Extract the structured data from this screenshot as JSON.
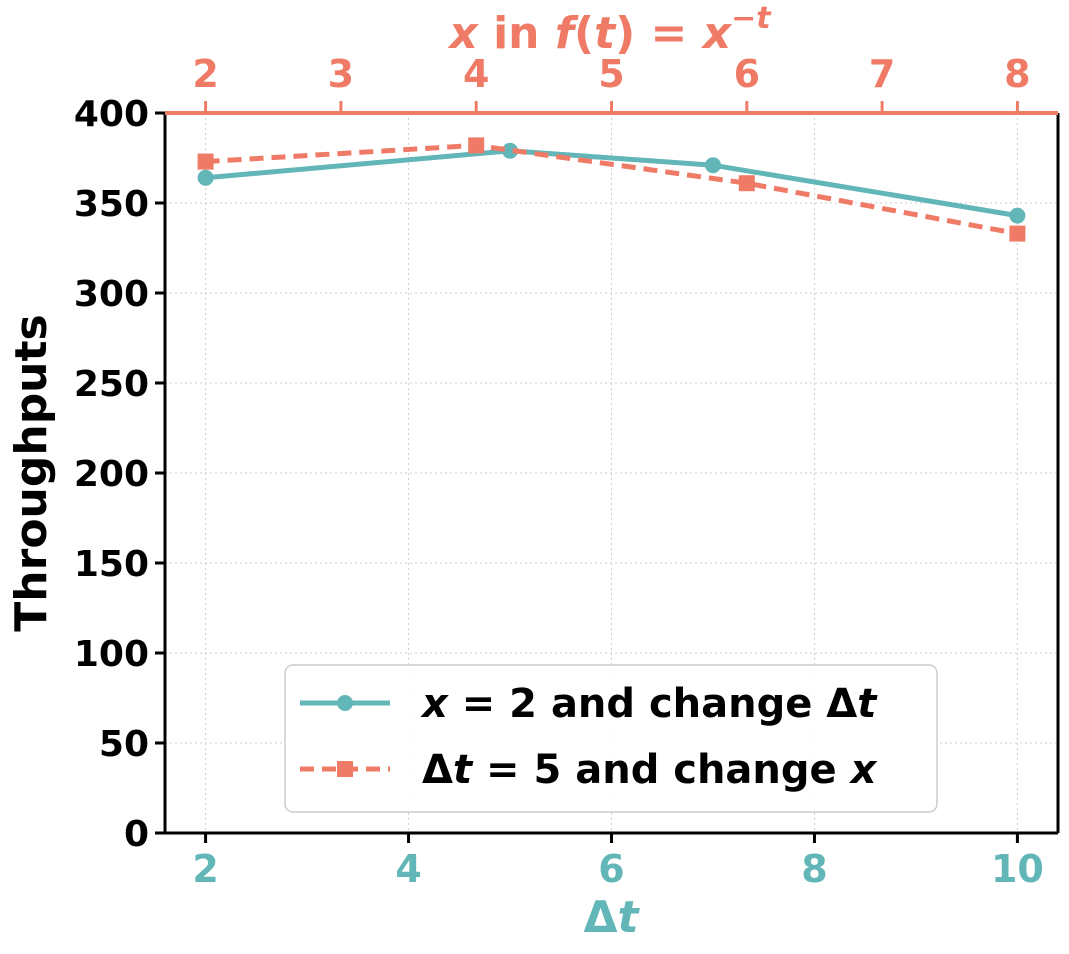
{
  "chart_data": {
    "type": "line",
    "ylabel": "Throughputs",
    "ylim": [
      0,
      400
    ],
    "yticks": [
      0,
      50,
      100,
      150,
      200,
      250,
      300,
      350,
      400
    ],
    "bottom_axis": {
      "label": "Δt",
      "label_italic": "t",
      "label_prefix": "Δ",
      "ticks": [
        2,
        4,
        6,
        8,
        10
      ],
      "range": [
        1.6,
        10.4
      ],
      "color": "#62b6b7"
    },
    "top_axis": {
      "label": "x in f(t) = x^(-t)",
      "ticks": [
        2,
        3,
        4,
        5,
        6,
        7,
        8
      ],
      "range": [
        1.7,
        8.3
      ],
      "color": "#ef7b66"
    },
    "series": [
      {
        "name": "x = 2 and change Δt",
        "axis": "bottom",
        "x": [
          2,
          5,
          7,
          10
        ],
        "values": [
          364,
          379,
          371,
          343
        ],
        "color": "#62b6b7",
        "marker": "circle",
        "line": "solid"
      },
      {
        "name": "Δt = 5 and change x",
        "axis": "top",
        "x": [
          2,
          4,
          6,
          8
        ],
        "values": [
          373,
          382,
          361,
          333
        ],
        "color": "#ef7b66",
        "marker": "square",
        "line": "dashed"
      }
    ],
    "grid": true,
    "legend_position": "bottom-center"
  }
}
